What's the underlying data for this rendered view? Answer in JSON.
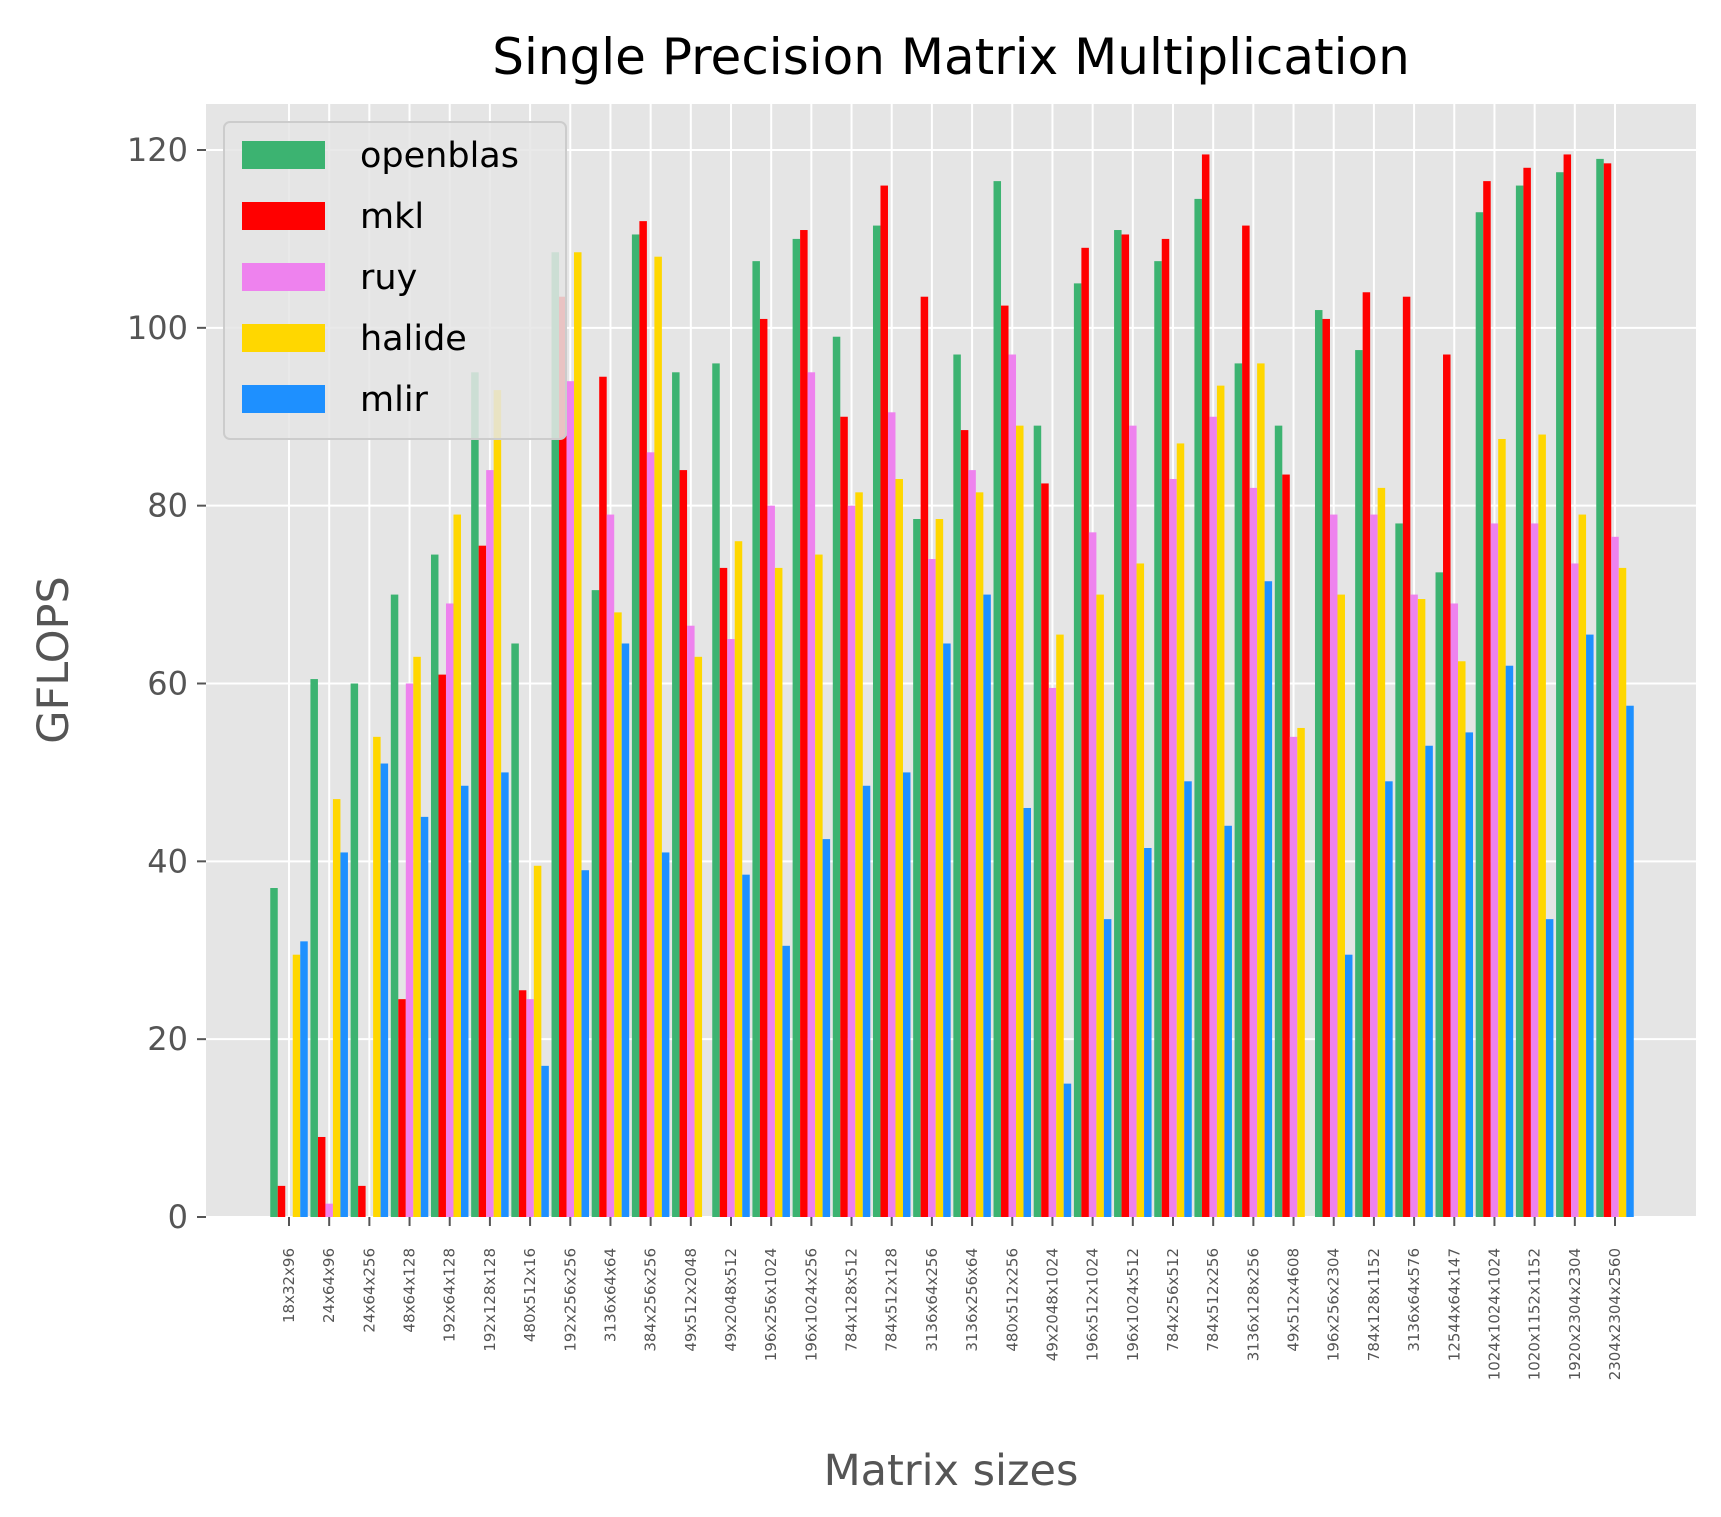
{
  "chart_data": {
    "type": "bar",
    "title": "Single Precision Matrix Multiplication",
    "xlabel": "Matrix sizes",
    "ylabel": "GFLOPS",
    "ylim": [
      0,
      125
    ],
    "yticks": [
      "0",
      "20",
      "40",
      "60",
      "80",
      "100",
      "120"
    ],
    "grid": true,
    "legend_position": "top-left",
    "categories": [
      "18x32x96",
      "24x64x96",
      "24x64x256",
      "48x64x128",
      "192x64x128",
      "192x128x128",
      "480x512x16",
      "192x256x256",
      "3136x64x64",
      "384x256x256",
      "49x512x2048",
      "49x2048x512",
      "196x256x1024",
      "196x1024x256",
      "784x128x512",
      "784x512x128",
      "3136x64x256",
      "3136x256x64",
      "480x512x256",
      "49x2048x1024",
      "196x512x1024",
      "196x1024x512",
      "784x256x512",
      "784x512x256",
      "3136x128x256",
      "49x512x4608",
      "196x256x2304",
      "784x128x1152",
      "3136x64x576",
      "12544x64x147",
      "1024x1024x1024",
      "1020x1152x1152",
      "1920x2304x2304",
      "2304x2304x2560"
    ],
    "series": [
      {
        "name": "openblas",
        "color": "#3cb371",
        "values": [
          37,
          60.5,
          60,
          70,
          74.5,
          95,
          64.5,
          108.5,
          70.5,
          110.5,
          95,
          96,
          107.5,
          110,
          99,
          111.5,
          78.5,
          97,
          116.5,
          89,
          105,
          111,
          107.5,
          114.5,
          96,
          89,
          102,
          97.5,
          78,
          72.5,
          113,
          116,
          117.5,
          119
        ]
      },
      {
        "name": "mkl",
        "color": "#ff0000",
        "values": [
          3.5,
          9,
          3.5,
          24.5,
          61,
          75.5,
          25.5,
          103.5,
          94.5,
          112,
          84,
          73,
          101,
          111,
          90,
          116,
          103.5,
          88.5,
          102.5,
          82.5,
          109,
          110.5,
          110,
          119.5,
          111.5,
          83.5,
          101,
          104,
          103.5,
          97,
          116.5,
          118,
          119.5,
          118.5
        ]
      },
      {
        "name": "ruy",
        "color": "#ee82ee",
        "values": [
          0,
          1.5,
          0,
          60,
          69,
          84,
          24.5,
          94,
          79,
          86,
          66.5,
          65,
          80,
          95,
          80,
          90.5,
          74,
          84,
          97,
          59.5,
          77,
          89,
          83,
          90,
          82,
          54,
          79,
          79,
          70,
          69,
          78,
          78,
          73.5,
          76.5
        ]
      },
      {
        "name": "halide",
        "color": "#ffd700",
        "values": [
          29.5,
          47,
          54,
          63,
          79,
          93,
          39.5,
          108.5,
          68,
          108,
          63,
          76,
          73,
          74.5,
          81.5,
          83,
          78.5,
          81.5,
          89,
          65.5,
          70,
          73.5,
          87,
          93.5,
          96,
          55,
          70,
          82,
          69.5,
          62.5,
          87.5,
          88,
          79,
          73
        ]
      },
      {
        "name": "mlir",
        "color": "#1e90ff",
        "values": [
          31,
          41,
          51,
          45,
          48.5,
          50,
          17,
          39,
          64.5,
          41,
          0,
          38.5,
          30.5,
          42.5,
          48.5,
          50,
          64.5,
          70,
          46,
          15,
          33.5,
          41.5,
          49,
          44,
          71.5,
          0,
          29.5,
          49,
          53,
          54.5,
          62,
          33.5,
          65.5,
          57.5
        ]
      }
    ]
  }
}
